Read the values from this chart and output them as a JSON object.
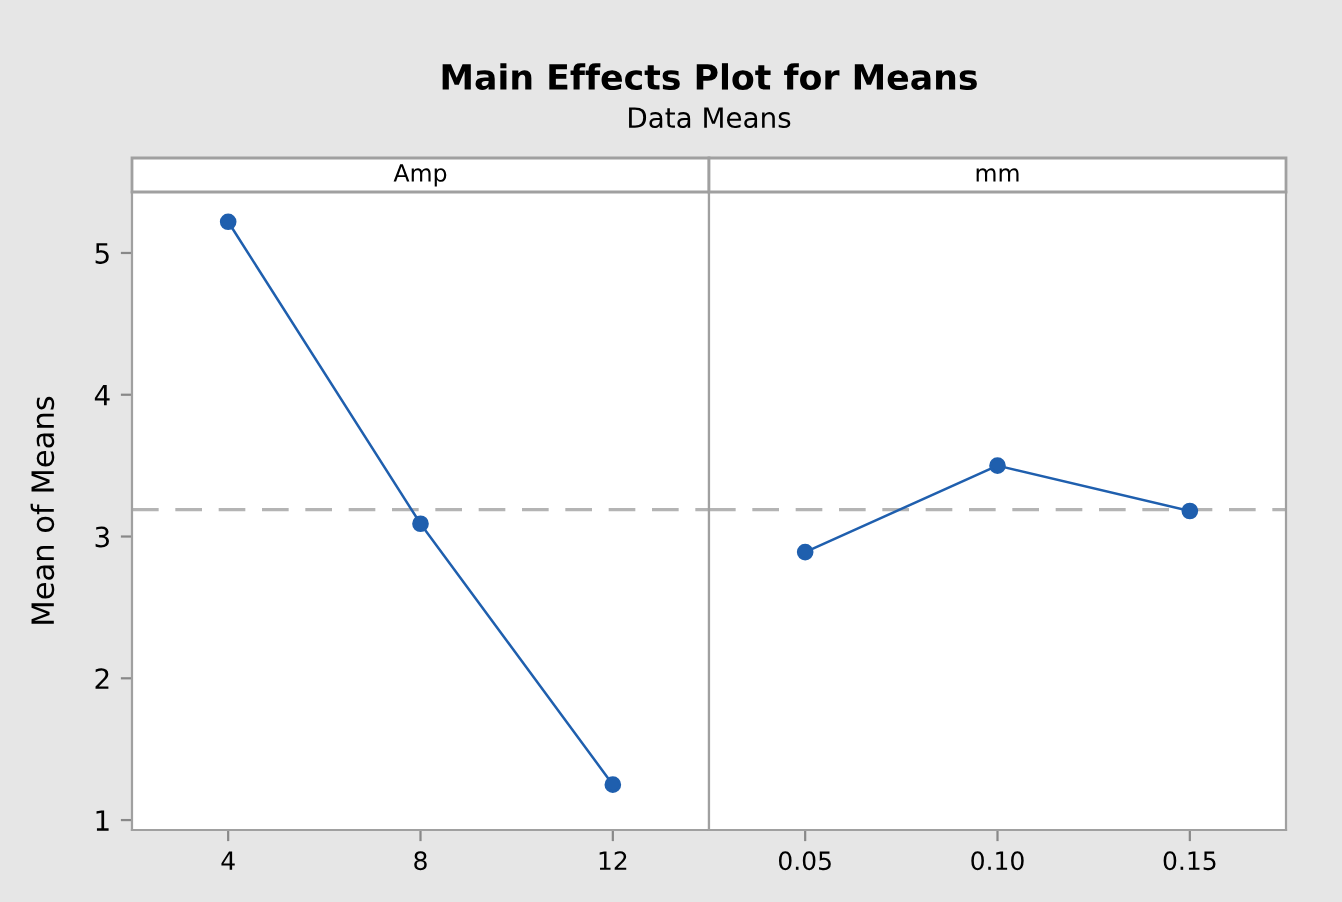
{
  "chart_data": [
    {
      "type": "line",
      "title": "Main Effects Plot for Means",
      "subtitle": "Data Means",
      "xlabel": "Amp",
      "ylabel": "Mean of Means",
      "categories": [
        "4",
        "8",
        "12"
      ],
      "series": [
        {
          "color": "#1f5fae",
          "values": [
            5.22,
            3.09,
            1.25
          ]
        }
      ],
      "ylim": [
        0.93,
        5.43
      ],
      "yticks": [
        1,
        2,
        3,
        4,
        5
      ],
      "marker": "circle",
      "line_style": "solid",
      "grid": false,
      "legend": false,
      "ref_lines": [
        {
          "axis": "y",
          "value": 3.19,
          "color": "#b4b4b4",
          "line_style": "dashed"
        }
      ]
    },
    {
      "type": "line",
      "xlabel": "mm",
      "categories": [
        "0.05",
        "0.10",
        "0.15"
      ],
      "series": [
        {
          "color": "#1f5fae",
          "values": [
            2.89,
            3.5,
            3.18
          ]
        }
      ],
      "ylim": [
        0.93,
        5.43
      ],
      "yticks": [
        1,
        2,
        3,
        4,
        5
      ],
      "tick_labels": "x",
      "marker": "circle",
      "line_style": "solid",
      "grid": false,
      "legend": false,
      "ref_lines": [
        {
          "axis": "y",
          "value": 3.19,
          "color": "#b4b4b4",
          "line_style": "dashed"
        }
      ]
    }
  ]
}
